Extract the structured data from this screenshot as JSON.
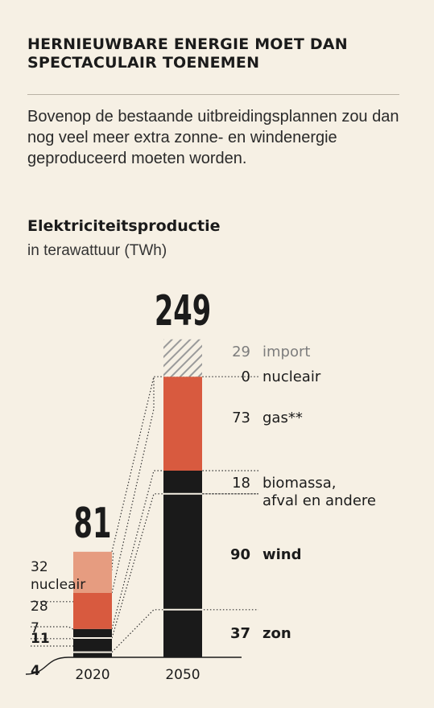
{
  "headline": "HERNIEUWBARE ENERGIE MOET DAN SPECTACULAIR TOENEMEN",
  "intro": "Bovenop de bestaande uitbreidingsplannen zou dan nog veel meer extra zonne- en windenergie geproduceerd moeten worden.",
  "colors": {
    "background": "#f6f0e4",
    "zon": "#1a1a1a",
    "wind": "#1a1a1a",
    "biomassa": "#1a1a1a",
    "gas": "#d85a3f",
    "nucleair": "#e69c80",
    "import_hatch": "#9a9a9a"
  },
  "chart_data": {
    "type": "bar",
    "stacked": true,
    "title": "Elektriciteitsproductie",
    "subtitle": "in terawattuur (TWh)",
    "categories": [
      "2020",
      "2050"
    ],
    "totals": [
      "81",
      "249"
    ],
    "series": [
      {
        "key": "zon",
        "values": [
          4,
          37
        ]
      },
      {
        "key": "wind",
        "values": [
          11,
          90
        ]
      },
      {
        "key": "biomassa",
        "values": [
          7,
          18
        ]
      },
      {
        "key": "gas",
        "values": [
          28,
          73
        ]
      },
      {
        "key": "nucleair",
        "values": [
          32,
          0
        ]
      },
      {
        "key": "import",
        "values": [
          0,
          29
        ]
      }
    ],
    "labels_2020": [
      {
        "key": "nucleair",
        "lines": [
          "32",
          "nucleair"
        ],
        "bold": false
      },
      {
        "key": "gas",
        "lines": [
          "28"
        ],
        "bold": false
      },
      {
        "key": "biomassa",
        "lines": [
          "7"
        ],
        "bold": false
      },
      {
        "key": "wind",
        "lines": [
          "11"
        ],
        "bold": true
      },
      {
        "key": "zon",
        "lines": [
          "4"
        ],
        "bold": true
      }
    ],
    "labels_2050": [
      {
        "key": "import",
        "value": "29",
        "name": "import",
        "bold": false,
        "muted": true
      },
      {
        "key": "nucleair",
        "value": "0",
        "name": "nucleair",
        "bold": false,
        "muted": false
      },
      {
        "key": "gas",
        "value": "73",
        "name": "gas**",
        "bold": false,
        "muted": false
      },
      {
        "key": "biomassa",
        "value": "18",
        "name": "biomassa,",
        "name2": "afval en andere",
        "bold": false,
        "muted": false
      },
      {
        "key": "wind",
        "value": "90",
        "name": "wind",
        "bold": true,
        "muted": false
      },
      {
        "key": "zon",
        "value": "37",
        "name": "zon",
        "bold": true,
        "muted": false
      }
    ]
  }
}
